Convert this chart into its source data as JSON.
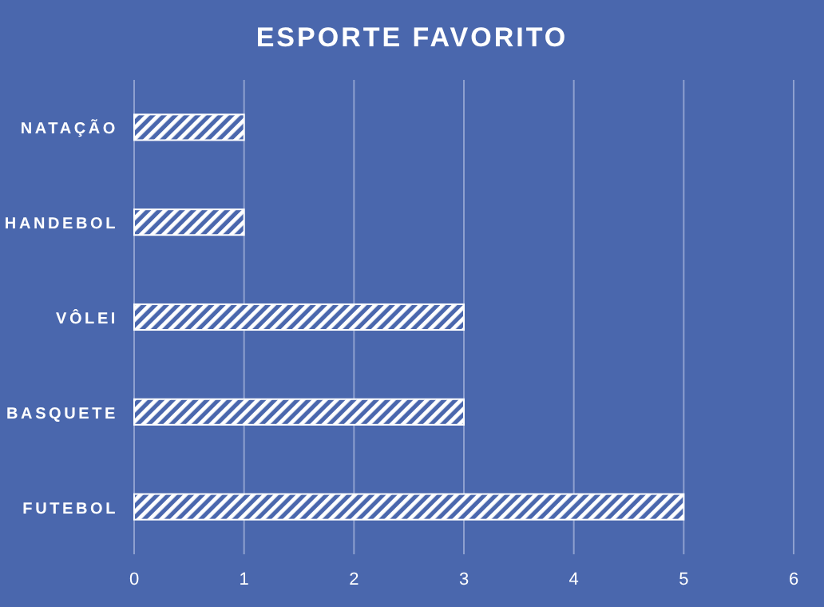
{
  "chart_data": {
    "type": "bar",
    "title": "ESPORTE FAVORITO",
    "orientation": "horizontal",
    "categories": [
      "NATAÇÃO",
      "HANDEBOL",
      "VÔLEI",
      "BASQUETE",
      "FUTEBOL"
    ],
    "values": [
      1,
      1,
      3,
      3,
      5
    ],
    "color": "#ffffff",
    "xlim": [
      0,
      6
    ],
    "xticks": [
      0,
      1,
      2,
      3,
      4,
      5,
      6
    ],
    "grid": "x"
  }
}
